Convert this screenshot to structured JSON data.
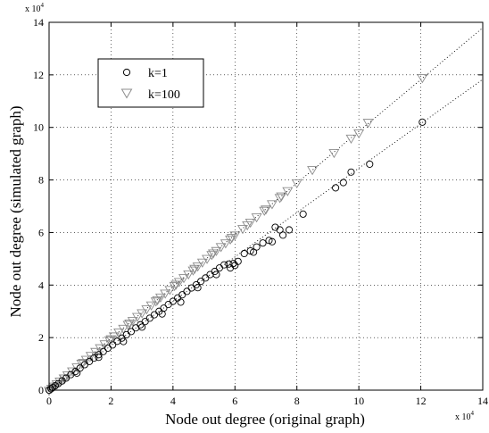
{
  "chart_data": {
    "type": "scatter",
    "xlabel": "Node out degree (original graph)",
    "ylabel": "Node out degree (simulated graph)",
    "xlim": [
      0,
      140000
    ],
    "ylim": [
      0,
      140000
    ],
    "x_ticks": [
      0,
      2,
      4,
      6,
      8,
      10,
      12,
      14
    ],
    "y_ticks": [
      0,
      2,
      4,
      6,
      8,
      10,
      12,
      14
    ],
    "x_multiplier": {
      "base": "x 10",
      "exp": "4"
    },
    "y_multiplier": {
      "base": "x 10",
      "exp": "4"
    },
    "grid": true,
    "legend_position": "top-left",
    "series": [
      {
        "name": "k=1",
        "marker": "circle",
        "color": "#000000",
        "trend_slope": 0.845,
        "points": [
          [
            0,
            0
          ],
          [
            600,
            500
          ],
          [
            1200,
            1000
          ],
          [
            2000,
            1700
          ],
          [
            3000,
            2500
          ],
          [
            4200,
            3500
          ],
          [
            5500,
            4600
          ],
          [
            7000,
            5900
          ],
          [
            8500,
            7100
          ],
          [
            10000,
            8400
          ],
          [
            11500,
            9700
          ],
          [
            13000,
            10900
          ],
          [
            14500,
            12200
          ],
          [
            16000,
            13500
          ],
          [
            17500,
            14700
          ],
          [
            19000,
            16000
          ],
          [
            20500,
            17200
          ],
          [
            22000,
            18600
          ],
          [
            23500,
            19800
          ],
          [
            25000,
            21100
          ],
          [
            26500,
            22300
          ],
          [
            28000,
            23700
          ],
          [
            29500,
            24900
          ],
          [
            31000,
            26100
          ],
          [
            32500,
            27400
          ],
          [
            34000,
            28700
          ],
          [
            35500,
            30000
          ],
          [
            37000,
            31200
          ],
          [
            38500,
            32600
          ],
          [
            40000,
            33800
          ],
          [
            41500,
            35100
          ],
          [
            43000,
            36300
          ],
          [
            44500,
            37600
          ],
          [
            46000,
            38900
          ],
          [
            47500,
            40100
          ],
          [
            49000,
            41400
          ],
          [
            50500,
            42700
          ],
          [
            52000,
            44000
          ],
          [
            53500,
            45200
          ],
          [
            55000,
            46500
          ],
          [
            56500,
            47700
          ],
          [
            58000,
            48000
          ],
          [
            59500,
            48200
          ],
          [
            63000,
            52000
          ],
          [
            65000,
            53000
          ],
          [
            67000,
            54500
          ],
          [
            69000,
            56000
          ],
          [
            71000,
            57000
          ],
          [
            73000,
            62000
          ],
          [
            74500,
            61000
          ],
          [
            75500,
            59000
          ],
          [
            77500,
            61000
          ],
          [
            82000,
            67000
          ],
          [
            92500,
            77000
          ],
          [
            95000,
            79000
          ],
          [
            97500,
            83000
          ],
          [
            103500,
            86000
          ],
          [
            120500,
            102000
          ],
          [
            9000,
            6500
          ],
          [
            16000,
            12500
          ],
          [
            24000,
            18500
          ],
          [
            30000,
            24000
          ],
          [
            36500,
            29000
          ],
          [
            42500,
            33500
          ],
          [
            48000,
            39000
          ],
          [
            54000,
            44000
          ],
          [
            60000,
            47500
          ],
          [
            66000,
            52500
          ],
          [
            72000,
            56500
          ],
          [
            61000,
            49000
          ],
          [
            58500,
            46500
          ]
        ]
      },
      {
        "name": "k=100",
        "marker": "triangle-down",
        "color": "#8c8c8c",
        "trend_slope": 0.985,
        "points": [
          [
            0,
            0
          ],
          [
            800,
            800
          ],
          [
            1600,
            1600
          ],
          [
            2500,
            2500
          ],
          [
            3500,
            3500
          ],
          [
            4800,
            4700
          ],
          [
            6000,
            5900
          ],
          [
            7500,
            7400
          ],
          [
            9000,
            8900
          ],
          [
            10500,
            10300
          ],
          [
            12000,
            11800
          ],
          [
            13500,
            13300
          ],
          [
            15000,
            14800
          ],
          [
            16500,
            16200
          ],
          [
            18000,
            17700
          ],
          [
            19500,
            19200
          ],
          [
            21000,
            20700
          ],
          [
            22500,
            22200
          ],
          [
            24000,
            23600
          ],
          [
            25500,
            25100
          ],
          [
            27000,
            26600
          ],
          [
            28500,
            28100
          ],
          [
            30000,
            29500
          ],
          [
            31500,
            31000
          ],
          [
            33000,
            32500
          ],
          [
            34500,
            34000
          ],
          [
            36000,
            35500
          ],
          [
            37500,
            37000
          ],
          [
            39000,
            38400
          ],
          [
            40500,
            39900
          ],
          [
            42000,
            41400
          ],
          [
            43500,
            42900
          ],
          [
            45000,
            44300
          ],
          [
            46500,
            45800
          ],
          [
            48000,
            47300
          ],
          [
            49500,
            48800
          ],
          [
            51000,
            50200
          ],
          [
            52500,
            51700
          ],
          [
            54000,
            53200
          ],
          [
            55500,
            54700
          ],
          [
            57000,
            56100
          ],
          [
            58500,
            57600
          ],
          [
            60000,
            59100
          ],
          [
            62500,
            61600
          ],
          [
            65000,
            64000
          ],
          [
            67000,
            66000
          ],
          [
            69500,
            68500
          ],
          [
            72000,
            71000
          ],
          [
            74500,
            73400
          ],
          [
            77000,
            76000
          ],
          [
            80000,
            79000
          ],
          [
            85000,
            84000
          ],
          [
            92000,
            90500
          ],
          [
            97500,
            96000
          ],
          [
            100000,
            98000
          ],
          [
            103000,
            102000
          ],
          [
            120500,
            119000
          ],
          [
            5000,
            4700
          ],
          [
            11000,
            10600
          ],
          [
            20000,
            19600
          ],
          [
            26000,
            25600
          ],
          [
            35000,
            34500
          ],
          [
            41000,
            40400
          ],
          [
            47000,
            46400
          ],
          [
            53000,
            52300
          ],
          [
            59000,
            58200
          ],
          [
            64000,
            63000
          ],
          [
            70000,
            69000
          ],
          [
            75000,
            74000
          ]
        ]
      }
    ]
  }
}
